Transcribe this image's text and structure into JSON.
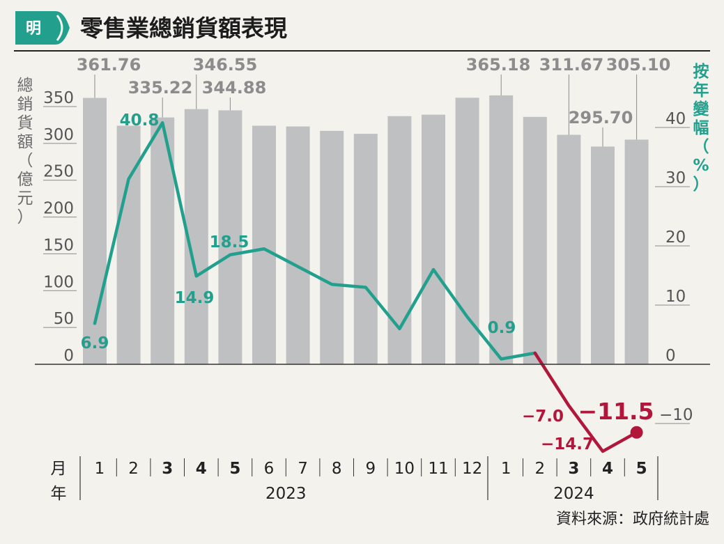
{
  "header": {
    "logo_text": "明",
    "title": "零售業總銷貨額表現"
  },
  "source": "資料來源：政府統計處",
  "colors": {
    "bar": "#bfc0c2",
    "line_positive": "#23a08d",
    "line_negative": "#b0173a",
    "logo": "#23a08d"
  },
  "chart_data": {
    "type": "bar+line",
    "left_axis": {
      "label": "總銷貨額（億元）",
      "ticks": [
        0,
        50,
        100,
        150,
        200,
        250,
        300,
        350
      ],
      "ylim": [
        0,
        400
      ]
    },
    "right_axis": {
      "label": "按年變幅（%）",
      "ticks": [
        -10,
        0,
        10,
        20,
        30,
        40
      ],
      "ylim": [
        -16,
        48
      ]
    },
    "x_axis": {
      "label_month": "月",
      "label_year": "年",
      "months": [
        "1",
        "2",
        "3",
        "4",
        "5",
        "6",
        "7",
        "8",
        "9",
        "10",
        "11",
        "12",
        "1",
        "2",
        "3",
        "4",
        "5"
      ],
      "bold_months": [
        2,
        3,
        4,
        14,
        15,
        16
      ],
      "years": [
        {
          "label": "2023",
          "from": 0,
          "to": 11
        },
        {
          "label": "2024",
          "from": 12,
          "to": 16
        }
      ]
    },
    "bars": {
      "values": [
        361.76,
        324,
        335.22,
        346.55,
        344.88,
        324,
        323,
        317,
        313,
        337,
        339,
        362,
        365.18,
        336,
        311.67,
        295.7,
        305.1
      ],
      "labels": [
        "361.76",
        "",
        "335.22",
        "346.55",
        "344.88",
        "",
        "",
        "",
        "",
        "",
        "",
        "",
        "365.18",
        "",
        "311.67",
        "295.70",
        "305.10"
      ]
    },
    "line": {
      "values": [
        6.9,
        31.3,
        40.8,
        14.9,
        18.5,
        19.5,
        16.5,
        13.5,
        13,
        6,
        16,
        8,
        0.9,
        1.9,
        -7.0,
        -14.7,
        -11.5
      ],
      "labels": [
        "6.9",
        "",
        "40.8",
        "14.9",
        "18.5",
        "",
        "",
        "",
        "",
        "",
        "",
        "",
        "0.9",
        "",
        "-7.0",
        "-14.7",
        "-11.5"
      ]
    }
  }
}
